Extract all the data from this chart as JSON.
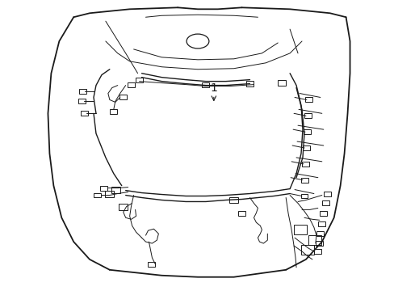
{
  "bg_color": "#ffffff",
  "line_color": "#1a1a1a",
  "part_number_label": "1",
  "lw_main": 1.0,
  "lw_thin": 0.7,
  "lw_hood": 1.3
}
